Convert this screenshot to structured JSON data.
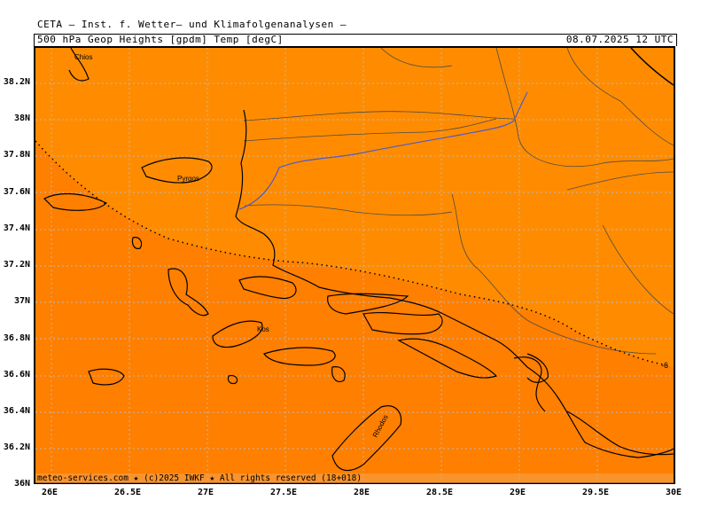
{
  "header": {
    "institute": "CETA — Inst. f. Wetter— und Klimafolgenanalysen —",
    "parameters": "500 hPa Geop Heights [gpdm] Temp [degC]",
    "valid_time": "08.07.2025 12 UTC"
  },
  "map": {
    "colors": {
      "warm_region": "#ff8c00",
      "hot_region": "#ff7f00",
      "coastline": "#000000",
      "border": "#4a4a4a",
      "river": "#4a5acd",
      "grid": "#b8b8b8"
    },
    "place_labels": [
      "Chios",
      "Pyrgos",
      "Kos",
      "Rhodos"
    ],
    "isotherm_label": "-6",
    "lat_labels": [
      "38.2N",
      "38N",
      "37.8N",
      "37.6N",
      "37.4N",
      "37.2N",
      "37N",
      "36.8N",
      "36.6N",
      "36.4N",
      "36.2N",
      "36N"
    ],
    "lon_labels": [
      "26E",
      "26.5E",
      "27E",
      "27.5E",
      "28E",
      "28.5E",
      "29E",
      "29.5E",
      "30E"
    ]
  },
  "footer": {
    "copyright": "meteo-services.com ★ (c)2025 IWKF ★ All rights reserved (18+018)"
  }
}
